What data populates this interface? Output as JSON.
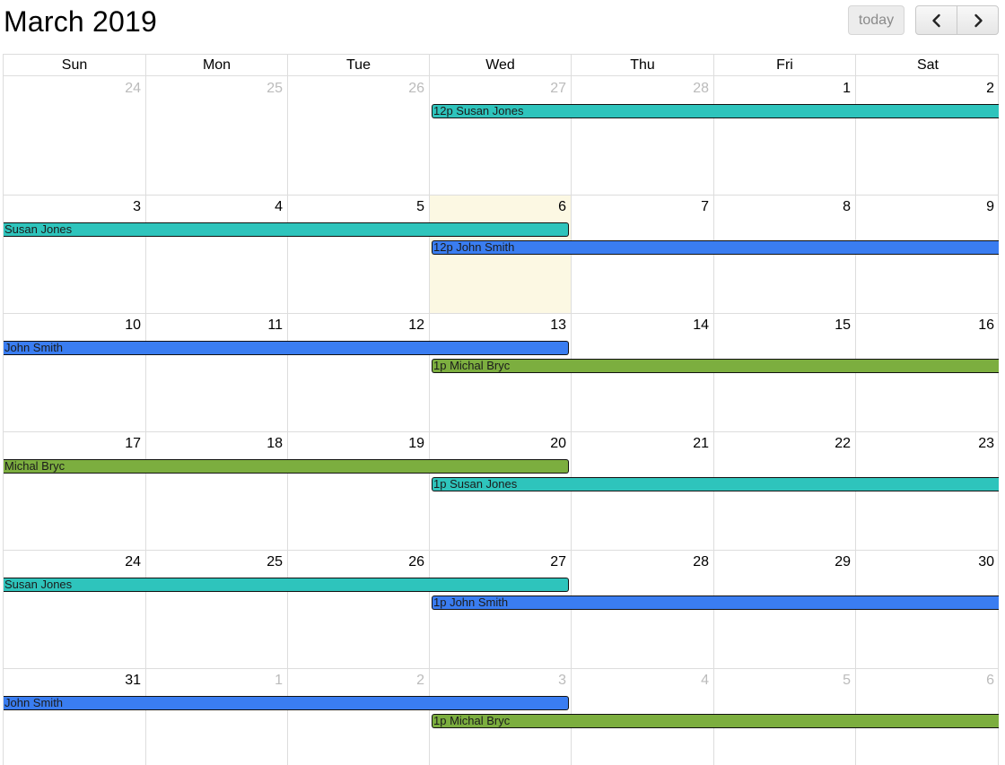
{
  "header": {
    "title": "March 2019",
    "today_label": "today",
    "prev_icon": "chevron-left-icon",
    "next_icon": "chevron-right-icon"
  },
  "weekdays": [
    "Sun",
    "Mon",
    "Tue",
    "Wed",
    "Thu",
    "Fri",
    "Sat"
  ],
  "weeks": [
    [
      {
        "d": "24",
        "o": true
      },
      {
        "d": "25",
        "o": true
      },
      {
        "d": "26",
        "o": true
      },
      {
        "d": "27",
        "o": true
      },
      {
        "d": "28",
        "o": true
      },
      {
        "d": "1",
        "o": false
      },
      {
        "d": "2",
        "o": false
      }
    ],
    [
      {
        "d": "3",
        "o": false
      },
      {
        "d": "4",
        "o": false
      },
      {
        "d": "5",
        "o": false
      },
      {
        "d": "6",
        "o": false,
        "today": true
      },
      {
        "d": "7",
        "o": false
      },
      {
        "d": "8",
        "o": false
      },
      {
        "d": "9",
        "o": false
      }
    ],
    [
      {
        "d": "10",
        "o": false
      },
      {
        "d": "11",
        "o": false
      },
      {
        "d": "12",
        "o": false
      },
      {
        "d": "13",
        "o": false
      },
      {
        "d": "14",
        "o": false
      },
      {
        "d": "15",
        "o": false
      },
      {
        "d": "16",
        "o": false
      }
    ],
    [
      {
        "d": "17",
        "o": false
      },
      {
        "d": "18",
        "o": false
      },
      {
        "d": "19",
        "o": false
      },
      {
        "d": "20",
        "o": false
      },
      {
        "d": "21",
        "o": false
      },
      {
        "d": "22",
        "o": false
      },
      {
        "d": "23",
        "o": false
      }
    ],
    [
      {
        "d": "24",
        "o": false
      },
      {
        "d": "25",
        "o": false
      },
      {
        "d": "26",
        "o": false
      },
      {
        "d": "27",
        "o": false
      },
      {
        "d": "28",
        "o": false
      },
      {
        "d": "29",
        "o": false
      },
      {
        "d": "30",
        "o": false
      }
    ],
    [
      {
        "d": "31",
        "o": false
      },
      {
        "d": "1",
        "o": true
      },
      {
        "d": "2",
        "o": true
      },
      {
        "d": "3",
        "o": true
      },
      {
        "d": "4",
        "o": true
      },
      {
        "d": "5",
        "o": true
      },
      {
        "d": "6",
        "o": true
      }
    ]
  ],
  "colors": {
    "Susan Jones": "#2ec4bc",
    "John Smith": "#3a7df1",
    "Michal Bryc": "#7cae3f",
    "today_bg": "#fcf8e3"
  },
  "events": [
    {
      "week": 0,
      "slot": 0,
      "startCol": 3,
      "endCol": 6,
      "label": "12p Susan Jones",
      "person": "Susan Jones",
      "startsHere": true,
      "endsHere": false
    },
    {
      "week": 1,
      "slot": 0,
      "startCol": 0,
      "endCol": 3,
      "label": "Susan Jones",
      "person": "Susan Jones",
      "startsHere": false,
      "endsHere": true
    },
    {
      "week": 1,
      "slot": 1,
      "startCol": 3,
      "endCol": 6,
      "label": "12p John Smith",
      "person": "John Smith",
      "startsHere": true,
      "endsHere": false
    },
    {
      "week": 2,
      "slot": 0,
      "startCol": 0,
      "endCol": 3,
      "label": "John Smith",
      "person": "John Smith",
      "startsHere": false,
      "endsHere": true
    },
    {
      "week": 2,
      "slot": 1,
      "startCol": 3,
      "endCol": 6,
      "label": "1p Michal Bryc",
      "person": "Michal Bryc",
      "startsHere": true,
      "endsHere": false
    },
    {
      "week": 3,
      "slot": 0,
      "startCol": 0,
      "endCol": 3,
      "label": "Michal Bryc",
      "person": "Michal Bryc",
      "startsHere": false,
      "endsHere": true
    },
    {
      "week": 3,
      "slot": 1,
      "startCol": 3,
      "endCol": 6,
      "label": "1p Susan Jones",
      "person": "Susan Jones",
      "startsHere": true,
      "endsHere": false
    },
    {
      "week": 4,
      "slot": 0,
      "startCol": 0,
      "endCol": 3,
      "label": "Susan Jones",
      "person": "Susan Jones",
      "startsHere": false,
      "endsHere": true
    },
    {
      "week": 4,
      "slot": 1,
      "startCol": 3,
      "endCol": 6,
      "label": "1p John Smith",
      "person": "John Smith",
      "startsHere": true,
      "endsHere": false
    },
    {
      "week": 5,
      "slot": 0,
      "startCol": 0,
      "endCol": 3,
      "label": "John Smith",
      "person": "John Smith",
      "startsHere": false,
      "endsHere": true
    },
    {
      "week": 5,
      "slot": 1,
      "startCol": 3,
      "endCol": 6,
      "label": "1p Michal Bryc",
      "person": "Michal Bryc",
      "startsHere": true,
      "endsHere": false
    }
  ]
}
